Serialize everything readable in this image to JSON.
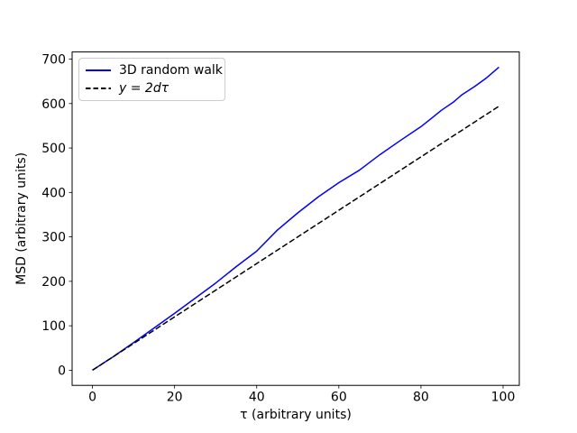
{
  "figure": {
    "background": "#ffffff",
    "spine_color": "#000000"
  },
  "chart_data": {
    "type": "line",
    "title": "",
    "xlabel": "τ (arbitrary units)",
    "ylabel": "MSD (arbitrary units)",
    "xlim": [
      -4.95,
      103.95
    ],
    "ylim": [
      -34.1,
      716.1
    ],
    "xticks": [
      0,
      20,
      40,
      60,
      80,
      100
    ],
    "yticks": [
      0,
      100,
      200,
      300,
      400,
      500,
      600,
      700
    ],
    "grid": false,
    "legend_position": "upper-left",
    "series": [
      {
        "name": "3D random walk",
        "color": "#0000ff",
        "style": "solid",
        "linewidth": 1.5,
        "x": [
          0,
          5,
          10,
          15,
          20,
          25,
          30,
          35,
          40,
          45,
          50,
          55,
          60,
          65,
          70,
          75,
          80,
          83,
          85,
          88,
          90,
          93,
          96,
          99
        ],
        "y": [
          0,
          30,
          62,
          95,
          128,
          162,
          196,
          233,
          268,
          315,
          354,
          390,
          422,
          450,
          485,
          517,
          548,
          570,
          585,
          604,
          620,
          638,
          658,
          682
        ]
      },
      {
        "name": "y = 2dτ",
        "color": "#000000",
        "style": "dashed",
        "linewidth": 1.5,
        "x": [
          0,
          99
        ],
        "y": [
          0,
          594
        ]
      }
    ]
  }
}
